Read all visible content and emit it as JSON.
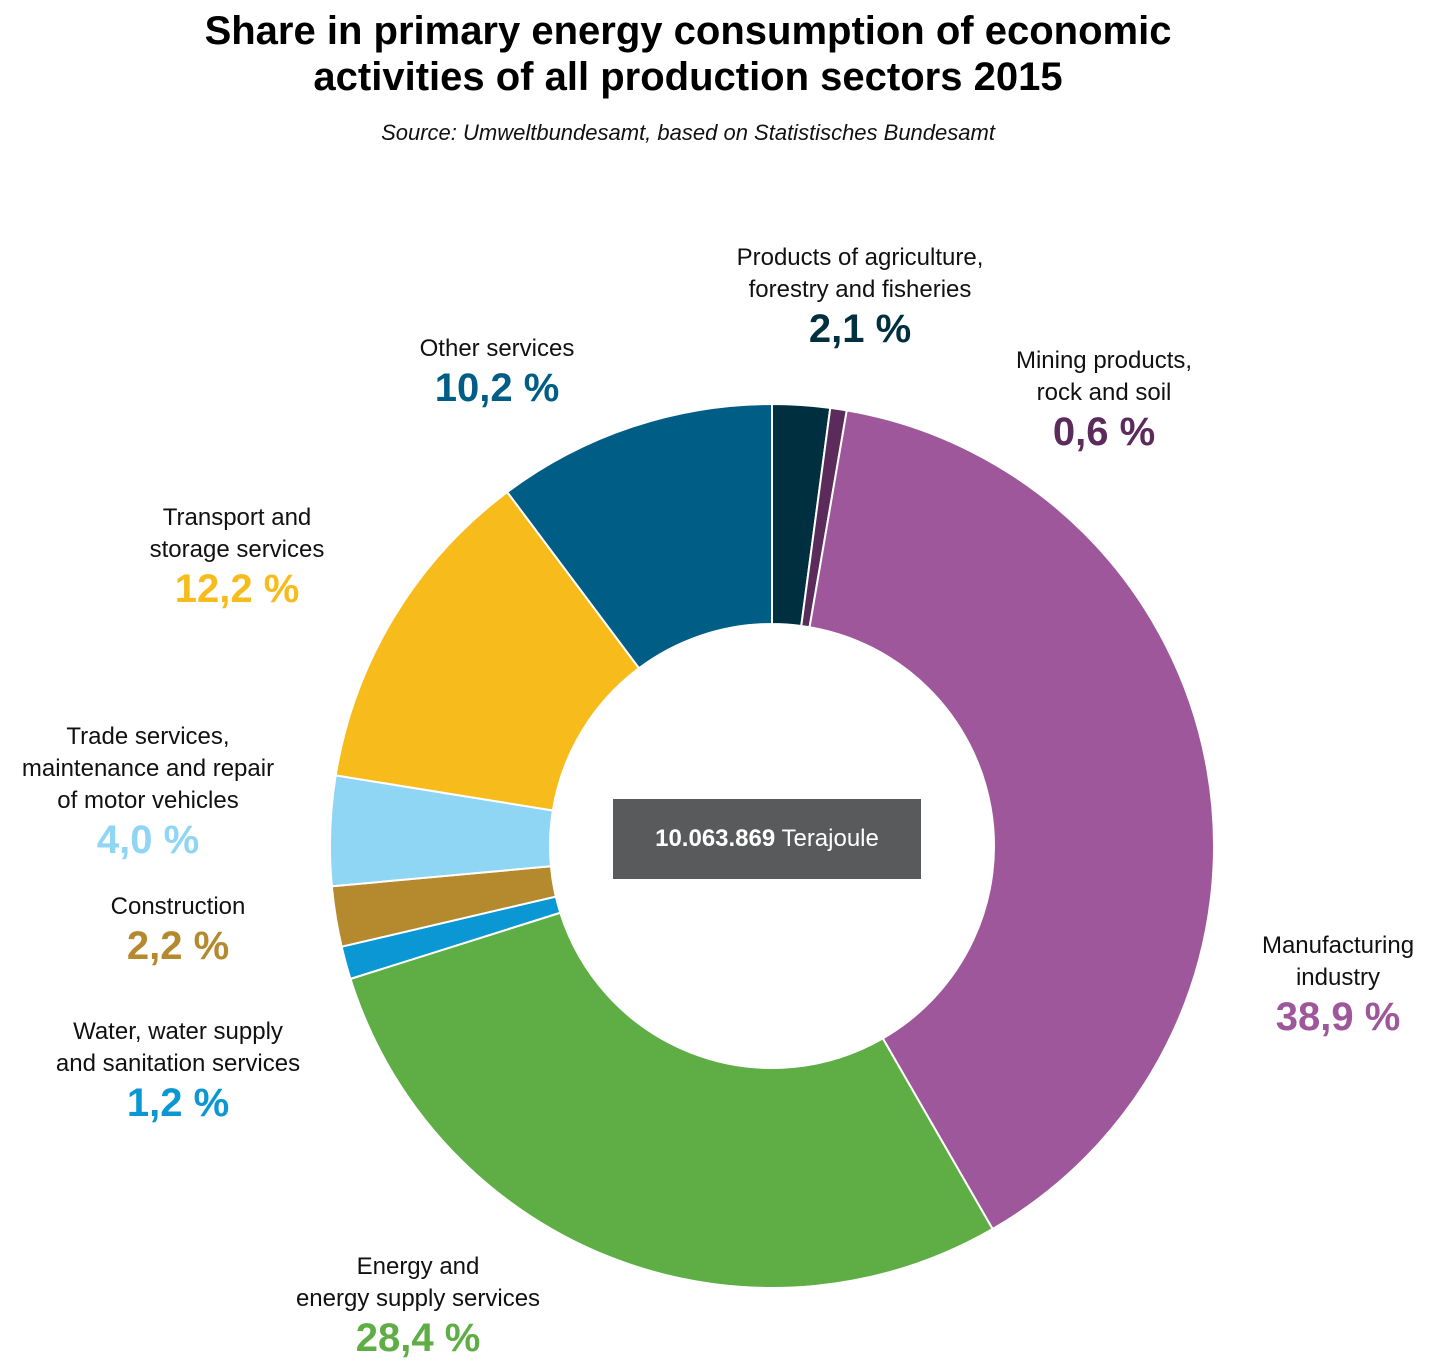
{
  "chart_data": {
    "type": "pie",
    "title_lines": [
      "Share in primary energy consumption of economic",
      "activities of all production sectors 2015"
    ],
    "subtitle": "Source: Umweltbundesamt, based on Statistisches Bundesamt",
    "center": {
      "value": "10.063.869",
      "unit": "Terajoule"
    },
    "slices": [
      {
        "name_lines": [
          "Products of agriculture,",
          "forestry and fisheries"
        ],
        "value": 2.1,
        "label": "2,1 %",
        "color": "#00303f"
      },
      {
        "name_lines": [
          "Mining products,",
          "rock and soil"
        ],
        "value": 0.6,
        "label": "0,6 %",
        "color": "#5b2b5c"
      },
      {
        "name_lines": [
          "Manufacturing",
          "industry"
        ],
        "value": 38.9,
        "label": "38,9 %",
        "color": "#9e579b"
      },
      {
        "name_lines": [
          "Energy and",
          "energy supply services"
        ],
        "value": 28.4,
        "label": "28,4 %",
        "color": "#5fad45"
      },
      {
        "name_lines": [
          "Water, water supply",
          "and sanitation services"
        ],
        "value": 1.2,
        "label": "1,2 %",
        "color": "#0a97d3"
      },
      {
        "name_lines": [
          "Construction"
        ],
        "value": 2.2,
        "label": "2,2 %",
        "color": "#b58a2e"
      },
      {
        "name_lines": [
          "Trade services,",
          "maintenance and repair",
          "of motor vehicles"
        ],
        "value": 4.0,
        "label": "4,0 %",
        "color": "#8fd5f4"
      },
      {
        "name_lines": [
          "Transport and",
          "storage services"
        ],
        "value": 12.2,
        "label": "12,2 %",
        "color": "#f7bb1b"
      },
      {
        "name_lines": [
          "Other services"
        ],
        "value": 10.2,
        "label": "10,2 %",
        "color": "#005d85"
      }
    ]
  }
}
